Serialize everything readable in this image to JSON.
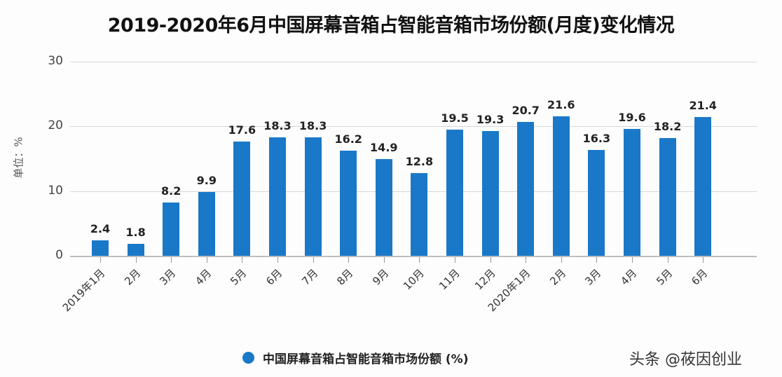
{
  "title": "2019-2020年6月中国屏幕音箱占智能音箱市场份额(月度)变化情况",
  "y_axis_label": "单位：%",
  "y_ticks": [
    "0",
    "10",
    "20",
    "30"
  ],
  "legend": {
    "label": "中国屏幕音箱占智能音箱市场份额 (%)",
    "color": "#1a78c8"
  },
  "watermark": "头条 @莜因创业",
  "chart_data": {
    "type": "bar",
    "title": "2019-2020年6月中国屏幕音箱占智能音箱市场份额(月度)变化情况",
    "xlabel": "",
    "ylabel": "单位：%",
    "ylim": [
      0,
      30
    ],
    "yticks": [
      0,
      10,
      20,
      30
    ],
    "grid": true,
    "legend_position": "bottom",
    "categories": [
      "2019年1月",
      "2月",
      "3月",
      "4月",
      "5月",
      "6月",
      "7月",
      "8月",
      "9月",
      "10月",
      "11月",
      "12月",
      "2020年1月",
      "2月",
      "3月",
      "4月",
      "5月",
      "6月"
    ],
    "series": [
      {
        "name": "中国屏幕音箱占智能音箱市场份额 (%)",
        "color": "#1a78c8",
        "values": [
          2.4,
          1.8,
          8.2,
          9.9,
          17.6,
          18.3,
          18.3,
          16.2,
          14.9,
          12.8,
          19.5,
          19.3,
          20.7,
          21.6,
          16.3,
          19.6,
          18.2,
          21.4
        ]
      }
    ]
  }
}
